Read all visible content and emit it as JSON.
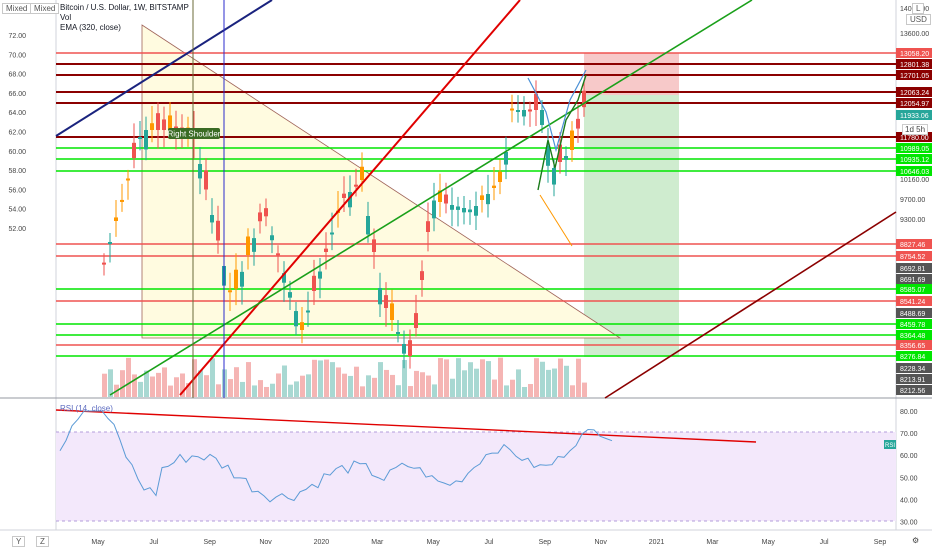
{
  "header": {
    "symbol_line": "Bitcoin / U.S. Dollar, 1W, BITSTAMP",
    "vol_label": "Vol",
    "ema_label": "EMA (320, close)",
    "rsi_label": "RSI (14, close)"
  },
  "toolbar": {
    "left_mode": "Mixed",
    "right_mode": "Mixed",
    "log_btn": "L",
    "currency": "USD",
    "scale_y": "Y",
    "scale_z": "Z"
  },
  "annotations": {
    "pattern_label": "Right Shoulder",
    "countdown": "1d 5h"
  },
  "chart_data": [
    {
      "type": "candlestick",
      "title": "Bitcoin / U.S. Dollar, 1W, BITSTAMP",
      "x_ticks": [
        "May",
        "Jul",
        "Sep",
        "Nov",
        "2020",
        "Mar",
        "May",
        "Jul",
        "Sep",
        "Nov",
        "2021",
        "Mar",
        "May",
        "Jul",
        "Sep"
      ],
      "left_axis_ticks": [
        "72.00",
        "70.00",
        "68.00",
        "66.00",
        "64.00",
        "62.00",
        "60.00",
        "58.00",
        "56.00",
        "54.00",
        "52.00"
      ],
      "right_axis_ticks": [
        "14000.00",
        "13600.00",
        "9700.00",
        "9300.00"
      ],
      "right_axis_extra_ticks": [
        "10160.00"
      ],
      "price_labels": [
        {
          "value": "13058.20",
          "color": "#ef5350"
        },
        {
          "value": "12801.38",
          "color": "#8b0000"
        },
        {
          "value": "12701.05",
          "color": "#8b0000"
        },
        {
          "value": "12063.24",
          "color": "#8b0000"
        },
        {
          "value": "12054.97",
          "color": "#8b0000"
        },
        {
          "value": "11933.06",
          "color": "#26a69a"
        },
        {
          "value": "11780.00",
          "color": "#8b0000"
        },
        {
          "value": "10989.05",
          "color": "#00e600"
        },
        {
          "value": "10935.12",
          "color": "#00e600"
        },
        {
          "value": "10646.03",
          "color": "#00e600"
        },
        {
          "value": "8827.46",
          "color": "#ef5350"
        },
        {
          "value": "8754.52",
          "color": "#ef5350"
        },
        {
          "value": "8692.81",
          "color": "#555555"
        },
        {
          "value": "8691.69",
          "color": "#555555"
        },
        {
          "value": "8585.07",
          "color": "#00e600"
        },
        {
          "value": "8541.24",
          "color": "#ef5350"
        },
        {
          "value": "8488.69",
          "color": "#555555"
        },
        {
          "value": "8459.78",
          "color": "#00e600"
        },
        {
          "value": "8364.48",
          "color": "#00e600"
        },
        {
          "value": "8356.65",
          "color": "#ef5350"
        },
        {
          "value": "8276.84",
          "color": "#00e600"
        },
        {
          "value": "8228.34",
          "color": "#555555"
        },
        {
          "value": "8213.91",
          "color": "#555555"
        },
        {
          "value": "8212.56",
          "color": "#555555"
        }
      ],
      "colors": {
        "up": "#26a69a",
        "down": "#ef5350",
        "marker": "#ff9800"
      }
    },
    {
      "type": "line",
      "title": "RSI (14, close)",
      "y_ticks": [
        "80.00",
        "70.00",
        "60.00",
        "50.00",
        "40.00",
        "30.00"
      ],
      "ylim": [
        28,
        84
      ],
      "upper_band": 70,
      "lower_band": 30,
      "current_label": "RSI",
      "color": "#5c9bd6"
    }
  ]
}
